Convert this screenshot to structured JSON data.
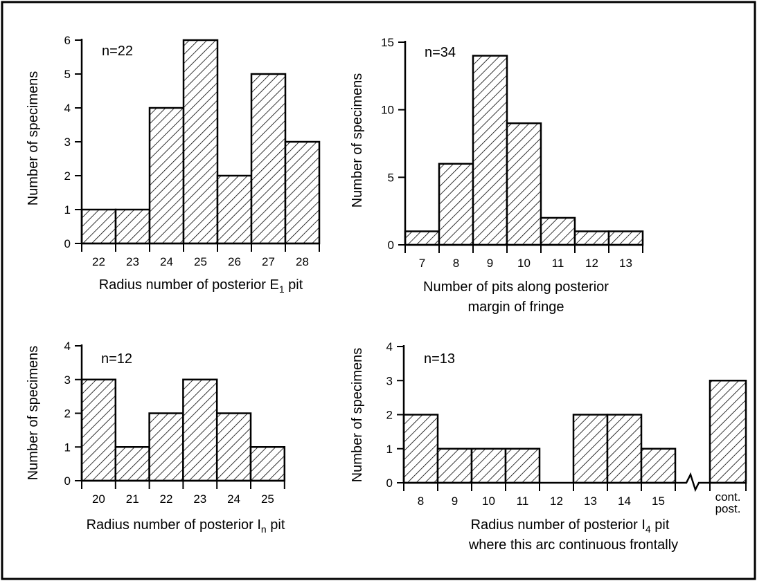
{
  "chart_data": [
    {
      "type": "bar",
      "n_label": "n=22",
      "categories": [
        "22",
        "23",
        "24",
        "25",
        "26",
        "27",
        "28"
      ],
      "values": [
        1,
        1,
        4,
        6,
        2,
        5,
        3
      ],
      "xlabel": "Radius number of posterior E",
      "xlabel_sub": "1",
      "xlabel_suffix": " pit",
      "ylabel": "Number of specimens",
      "yticks": [
        0,
        1,
        2,
        3,
        4,
        5,
        6
      ],
      "ylim": [
        0,
        6
      ]
    },
    {
      "type": "bar",
      "n_label": "n=34",
      "categories": [
        "7",
        "8",
        "9",
        "10",
        "11",
        "12",
        "13"
      ],
      "values": [
        1,
        6,
        14,
        9,
        2,
        1,
        1
      ],
      "xlabel": "Number of pits along posterior",
      "xlabel_line2": "margin of fringe",
      "ylabel": "Number of specimens",
      "yticks": [
        0,
        5,
        10,
        15
      ],
      "ylim": [
        0,
        15
      ]
    },
    {
      "type": "bar",
      "n_label": "n=12",
      "categories": [
        "20",
        "21",
        "22",
        "23",
        "24",
        "25"
      ],
      "values": [
        3,
        1,
        2,
        3,
        2,
        1
      ],
      "xlabel": "Radius number of posterior I",
      "xlabel_sub": "n",
      "xlabel_suffix": " pit",
      "ylabel": "Number of specimens",
      "yticks": [
        0,
        1,
        2,
        3,
        4
      ],
      "ylim": [
        0,
        4
      ]
    },
    {
      "type": "bar",
      "n_label": "n=13",
      "categories": [
        "8",
        "9",
        "10",
        "11",
        "12",
        "13",
        "14",
        "15",
        "cont. post."
      ],
      "values": [
        2,
        1,
        1,
        1,
        0,
        2,
        2,
        1,
        3
      ],
      "xlabel": "Radius number of posterior I",
      "xlabel_sub": "4",
      "xlabel_suffix": " pit",
      "xlabel_line2": "where this arc continuous frontally",
      "ylabel": "Number of specimens",
      "yticks": [
        0,
        1,
        2,
        3,
        4
      ],
      "ylim": [
        0,
        4
      ],
      "axis_break": true
    }
  ]
}
